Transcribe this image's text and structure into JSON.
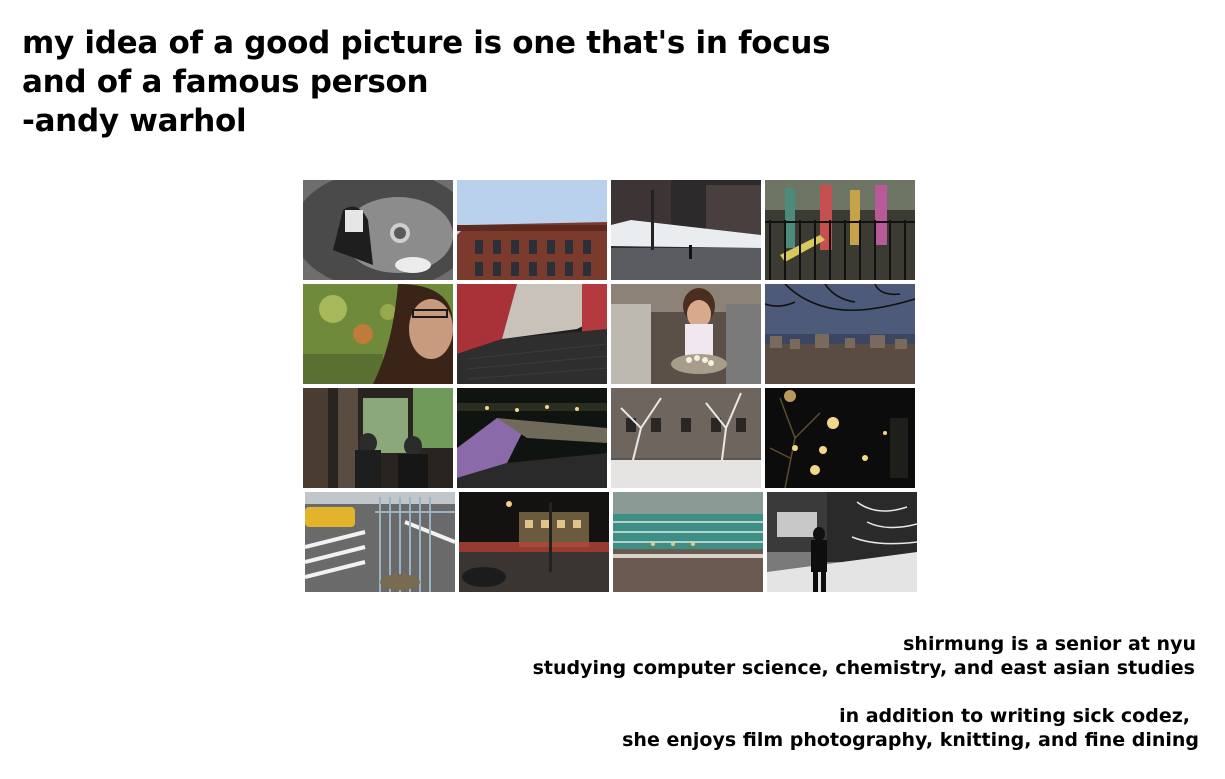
{
  "quote": {
    "line1": "my idea of a good picture is one that's in focus",
    "line2": "and of a famous person",
    "line3": "-andy warhol"
  },
  "gallery": {
    "photos": [
      {
        "name": "sink-drain-photo"
      },
      {
        "name": "brick-building-photo"
      },
      {
        "name": "snowy-park-photo"
      },
      {
        "name": "playground-photo"
      },
      {
        "name": "girl-glasses-photo"
      },
      {
        "name": "red-window-photo"
      },
      {
        "name": "girl-tray-photo"
      },
      {
        "name": "city-skyline-photo"
      },
      {
        "name": "cafe-people-photo"
      },
      {
        "name": "waterfall-night-photo"
      },
      {
        "name": "snow-trees-photo"
      },
      {
        "name": "night-lights-photo"
      },
      {
        "name": "taxi-street-photo"
      },
      {
        "name": "night-street-photo"
      },
      {
        "name": "pool-photo"
      },
      {
        "name": "snow-walker-photo"
      }
    ]
  },
  "bio": {
    "line1": "shirmung is a senior at nyu",
    "line2": "studying computer science, chemistry, and east asian studies",
    "line3": "in addition to writing sick codez,",
    "line4": "she enjoys film photography, knitting, and fine dining"
  }
}
